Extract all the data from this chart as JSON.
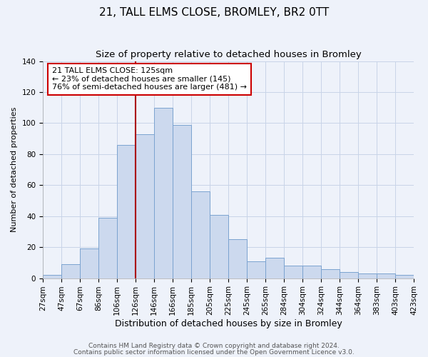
{
  "title": "21, TALL ELMS CLOSE, BROMLEY, BR2 0TT",
  "subtitle": "Size of property relative to detached houses in Bromley",
  "xlabel": "Distribution of detached houses by size in Bromley",
  "ylabel": "Number of detached properties",
  "bar_labels": [
    "27sqm",
    "47sqm",
    "67sqm",
    "86sqm",
    "106sqm",
    "126sqm",
    "146sqm",
    "166sqm",
    "185sqm",
    "205sqm",
    "225sqm",
    "245sqm",
    "265sqm",
    "284sqm",
    "304sqm",
    "324sqm",
    "344sqm",
    "364sqm",
    "383sqm",
    "403sqm",
    "423sqm"
  ],
  "bar_values": [
    2,
    9,
    19,
    39,
    86,
    93,
    110,
    99,
    56,
    41,
    25,
    11,
    13,
    8,
    8,
    6,
    4,
    3,
    3,
    2
  ],
  "bar_color": "#ccd9ee",
  "bar_edge_color": "#7ba3d0",
  "grid_color": "#c8d4e8",
  "background_color": "#eef2fa",
  "marker_line_color": "#aa0000",
  "annotation_title": "21 TALL ELMS CLOSE: 125sqm",
  "annotation_line1": "← 23% of detached houses are smaller (145)",
  "annotation_line2": "76% of semi-detached houses are larger (481) →",
  "annotation_box_color": "#ffffff",
  "annotation_box_edge": "#cc0000",
  "footer1": "Contains HM Land Registry data © Crown copyright and database right 2024.",
  "footer2": "Contains public sector information licensed under the Open Government Licence v3.0.",
  "ylim": [
    0,
    140
  ],
  "yticks": [
    0,
    20,
    40,
    60,
    80,
    100,
    120,
    140
  ],
  "title_fontsize": 11,
  "subtitle_fontsize": 9.5,
  "xlabel_fontsize": 9,
  "ylabel_fontsize": 8,
  "tick_fontsize": 7.5,
  "footer_fontsize": 6.5
}
